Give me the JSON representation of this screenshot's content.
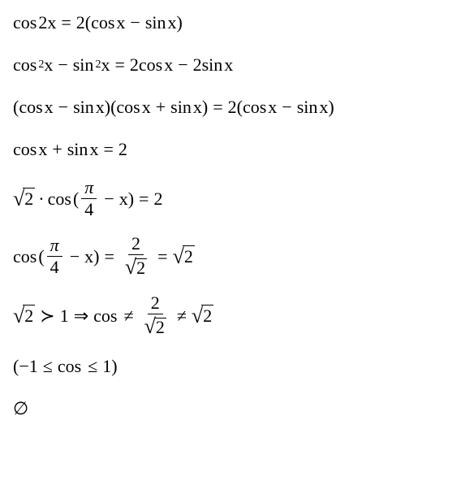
{
  "text_color": "#000000",
  "background_color": "#ffffff",
  "font_family": "Times New Roman",
  "font_size_pt": 22,
  "lines": {
    "l1": {
      "cos": "cos",
      "two": "2",
      "x": "x",
      "eq": "=",
      "lp": "(",
      "sin": "sin",
      "minus": "−",
      "rp": ")"
    },
    "l2": {
      "cos": "cos",
      "sq": "2",
      "x": "x",
      "minus": "−",
      "sin": "sin",
      "eq": "=",
      "two": "2"
    },
    "l3": {
      "lp": "(",
      "cos": "cos",
      "x": "x",
      "minus": "−",
      "sin": "sin",
      "rp": ")",
      "plus": "+",
      "eq": "=",
      "two": "2"
    },
    "l4": {
      "cos": "cos",
      "x": "x",
      "plus": "+",
      "sin": "sin",
      "eq": "=",
      "two": "2"
    },
    "l5": {
      "two": "2",
      "dot": "·",
      "cos": "cos",
      "lp": "(",
      "pi": "π",
      "four": "4",
      "minus": "−",
      "x": "x",
      "rp": ")",
      "eq": "="
    },
    "l6": {
      "cos": "cos",
      "lp": "(",
      "pi": "π",
      "four": "4",
      "minus": "−",
      "x": "x",
      "rp": ")",
      "eq": "=",
      "two": "2"
    },
    "l7": {
      "two": "2",
      "succ": "≻",
      "one": "1",
      "imp": "⇒",
      "cos": "cos",
      "ne": "≠",
      "eq": "="
    },
    "l8": {
      "lp": "(",
      "neg1": "−1",
      "le": "≤",
      "cos": "cos",
      "one": "1",
      "rp": ")"
    },
    "l9": {
      "empty": "∅"
    }
  }
}
